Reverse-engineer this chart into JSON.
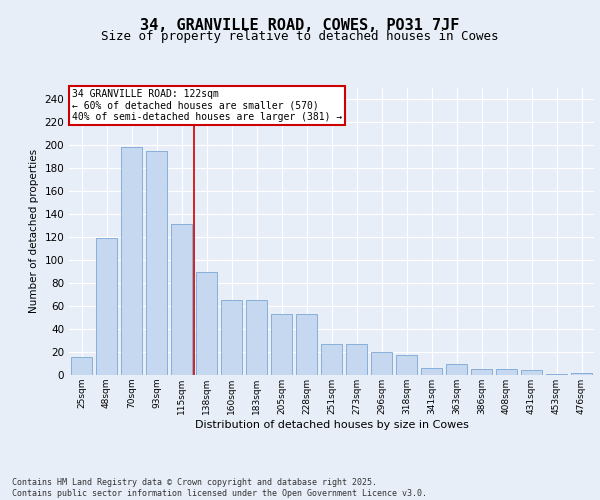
{
  "title1": "34, GRANVILLE ROAD, COWES, PO31 7JF",
  "title2": "Size of property relative to detached houses in Cowes",
  "xlabel": "Distribution of detached houses by size in Cowes",
  "ylabel": "Number of detached properties",
  "categories": [
    "25sqm",
    "48sqm",
    "70sqm",
    "93sqm",
    "115sqm",
    "138sqm",
    "160sqm",
    "183sqm",
    "205sqm",
    "228sqm",
    "251sqm",
    "273sqm",
    "296sqm",
    "318sqm",
    "341sqm",
    "363sqm",
    "386sqm",
    "408sqm",
    "431sqm",
    "453sqm",
    "476sqm"
  ],
  "values": [
    16,
    119,
    198,
    195,
    131,
    90,
    65,
    65,
    53,
    53,
    27,
    27,
    20,
    17,
    6,
    10,
    5,
    5,
    4,
    1,
    2
  ],
  "bar_color": "#c5d8f0",
  "bar_edge_color": "#7ba7d4",
  "vline_x": 4.5,
  "vline_color": "#cc0000",
  "annotation_text": "34 GRANVILLE ROAD: 122sqm\n← 60% of detached houses are smaller (570)\n40% of semi-detached houses are larger (381) →",
  "annotation_box_color": "#cc0000",
  "ylim": [
    0,
    250
  ],
  "yticks": [
    0,
    20,
    40,
    60,
    80,
    100,
    120,
    140,
    160,
    180,
    200,
    220,
    240
  ],
  "footnote": "Contains HM Land Registry data © Crown copyright and database right 2025.\nContains public sector information licensed under the Open Government Licence v3.0.",
  "bg_color": "#e8eef8",
  "plot_bg_color": "#e8eef8",
  "grid_color": "#ffffff",
  "title1_fontsize": 11,
  "title2_fontsize": 9
}
